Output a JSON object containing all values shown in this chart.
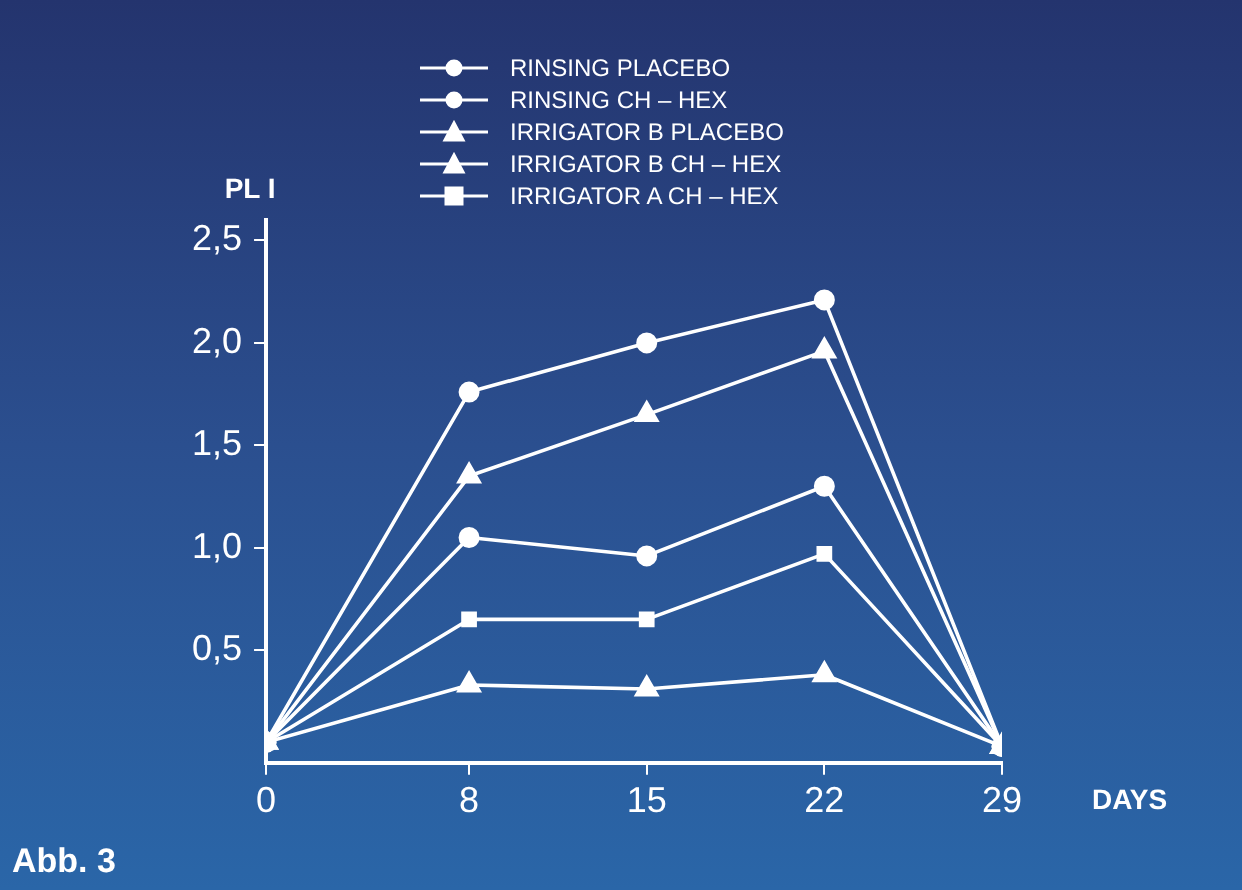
{
  "chart_data": {
    "type": "line",
    "ylabel": "PL I",
    "xlabel": "DAYS",
    "annotations": [
      "Abb. 3"
    ],
    "x": [
      0,
      8,
      15,
      22,
      29
    ],
    "xlim": [
      0,
      29
    ],
    "xticks": [
      0,
      8,
      15,
      22,
      29
    ],
    "ylim": [
      -0.05,
      2.6
    ],
    "yticks": [
      {
        "value": 0.5,
        "label": "0,5"
      },
      {
        "value": 1,
        "label": "1,0"
      },
      {
        "value": 1.5,
        "label": "1,5"
      },
      {
        "value": 2,
        "label": "2,0"
      },
      {
        "value": 2.5,
        "label": "2,5"
      }
    ],
    "grid": false,
    "legend": "top",
    "line_style": "solid",
    "series": [
      {
        "name": "RINSING  PLACEBO",
        "color": "#ffffff",
        "marker": "circle",
        "values": [
          0.05,
          1.76,
          2.0,
          2.21,
          0.03
        ]
      },
      {
        "name": "RINSING  CH – HEX",
        "color": "#ffffff",
        "marker": "circle",
        "values": [
          0.05,
          1.05,
          0.96,
          1.3,
          0.03
        ]
      },
      {
        "name": "IRRIGATOR B PLACEBO",
        "color": "#ffffff",
        "marker": "triangle",
        "values": [
          0.05,
          1.35,
          1.65,
          1.96,
          0.03
        ]
      },
      {
        "name": "IRRIGATOR B CH – HEX",
        "color": "#ffffff",
        "marker": "triangle",
        "values": [
          0.05,
          0.33,
          0.31,
          0.38,
          0.03
        ]
      },
      {
        "name": "IRRIGATOR A CH – HEX",
        "color": "#ffffff",
        "marker": "square",
        "values": [
          0.05,
          0.65,
          0.65,
          0.97,
          0.03
        ]
      }
    ]
  }
}
